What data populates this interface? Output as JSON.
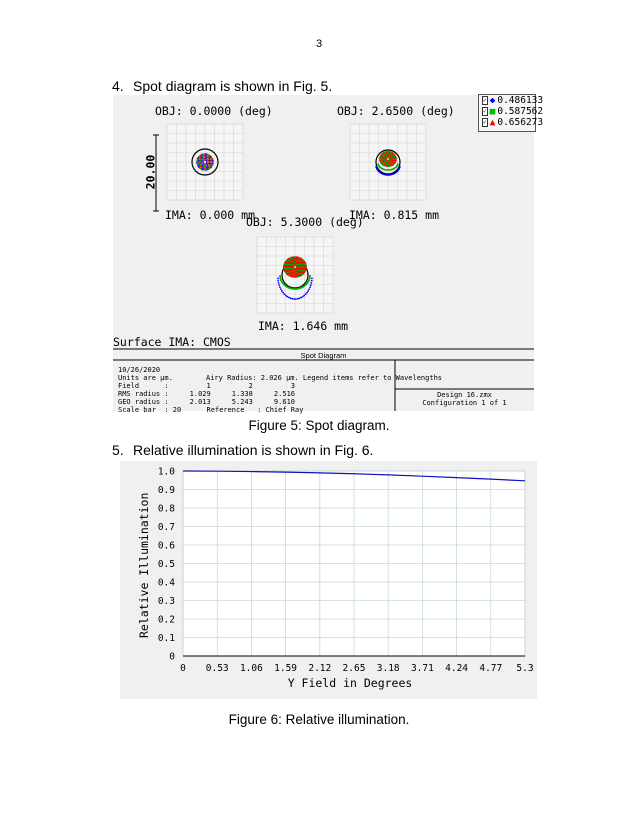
{
  "page_number": "3",
  "section4": {
    "number": "4.",
    "text": "Spot diagram is shown in Fig. 5."
  },
  "section5": {
    "number": "5.",
    "text": "Relative illumination is shown in Fig. 6."
  },
  "figure5": {
    "caption": "Figure 5: Spot diagram.",
    "legend": [
      {
        "value": "0.486133",
        "color": "#0000ff"
      },
      {
        "value": "0.587562",
        "color": "#00c000"
      },
      {
        "value": "0.656273",
        "color": "#ff0000"
      }
    ],
    "spots": [
      {
        "obj": "OBJ: 0.0000 (deg)",
        "ima": "IMA: 0.000 mm"
      },
      {
        "obj": "OBJ: 2.6500 (deg)",
        "ima": "IMA: 0.815 mm"
      },
      {
        "obj": "OBJ: 5.3000 (deg)",
        "ima": "IMA: 1.646 mm"
      }
    ],
    "scale_bar_label": "20.00",
    "surface_label": "Surface IMA: CMOS",
    "title": "Spot Diagram",
    "info": {
      "date": "10/26/2020",
      "units": "Units are µm.",
      "airy": "Airy Radius: 2.026 µm. Legend items refer to Wavelengths",
      "field_row": "Field      :         1         2         3",
      "rms_row": "RMS radius :     1.029     1.338     2.516",
      "geo_row": "GEO radius :     2.013     5.243     9.610",
      "scale_row": "Scale bar  : 20      Reference   : Chief Ray",
      "design": "Design 16.zmx",
      "config": "Configuration 1 of 1"
    }
  },
  "figure6": {
    "caption": "Figure 6: Relative illumination."
  },
  "chart_data": {
    "type": "line",
    "title": "",
    "xlabel": "Y Field in Degrees",
    "ylabel": "Relative Illumination",
    "xlim": [
      0,
      5.3
    ],
    "ylim": [
      0,
      1.0
    ],
    "x_ticks": [
      "0",
      "0.53",
      "1.06",
      "1.59",
      "2.12",
      "2.65",
      "3.18",
      "3.71",
      "4.24",
      "4.77",
      "5.3"
    ],
    "y_ticks": [
      "0",
      "0.1",
      "0.2",
      "0.3",
      "0.4",
      "0.5",
      "0.6",
      "0.7",
      "0.8",
      "0.9",
      "1.0"
    ],
    "grid": true,
    "line_color": "#1010c0",
    "series": [
      {
        "x": [
          0,
          0.53,
          1.06,
          1.59,
          2.12,
          2.65,
          3.18,
          3.71,
          4.24,
          4.77,
          5.3
        ],
        "y": [
          1.0,
          0.999,
          0.997,
          0.994,
          0.99,
          0.985,
          0.979,
          0.972,
          0.964,
          0.956,
          0.947
        ]
      }
    ]
  }
}
